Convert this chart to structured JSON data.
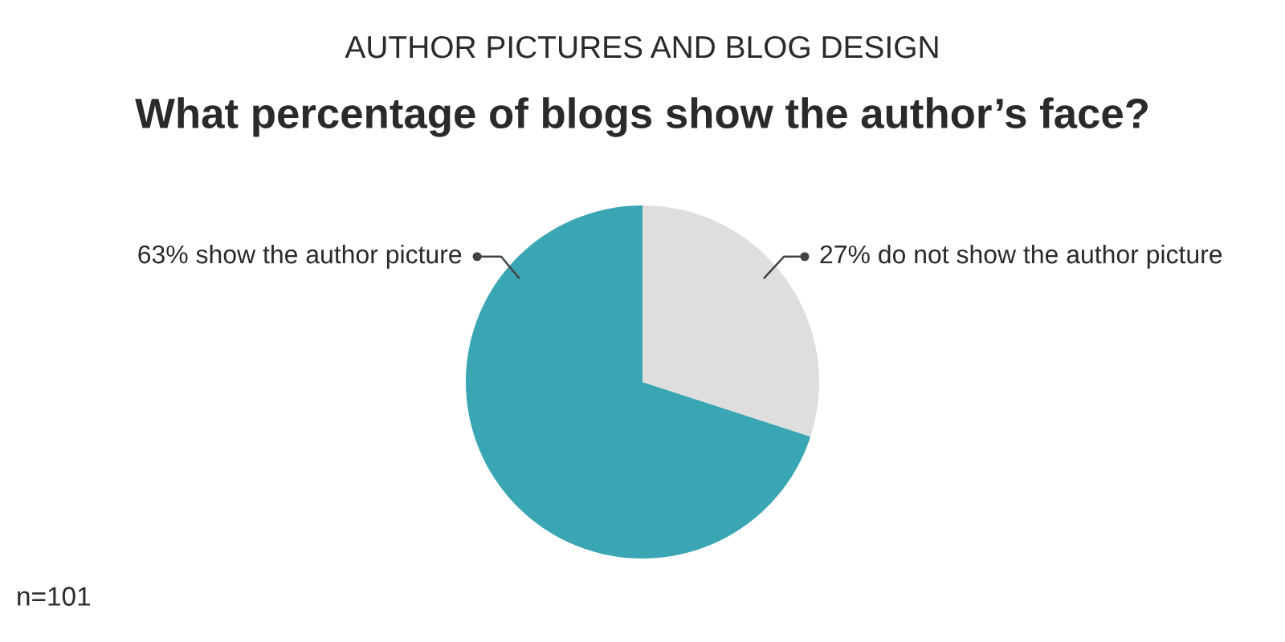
{
  "chart_data": {
    "type": "pie",
    "subtitle": "AUTHOR PICTURES AND BLOG DESIGN",
    "title": "What percentage of blogs show the author’s face?",
    "categories": [
      "show the author picture",
      "do not show the author picture"
    ],
    "values": [
      63,
      27
    ],
    "value_labels": [
      "63%",
      "27%"
    ],
    "colors": [
      "#3aa6b4",
      "#dedede"
    ],
    "annotations": [
      "n=101"
    ]
  }
}
